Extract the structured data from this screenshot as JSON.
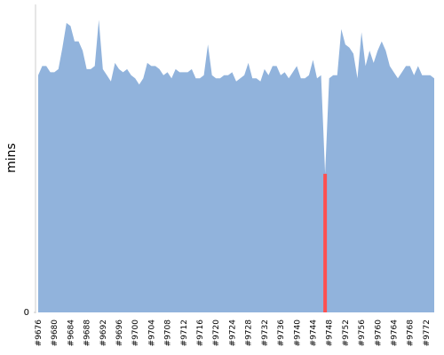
{
  "chart_data": {
    "type": "area",
    "ylabel": "mins",
    "color": "#91b3dc",
    "highlight": {
      "index": 71,
      "color": "#ff5050"
    },
    "ylim": [
      0,
      100
    ],
    "yticks": [
      0
    ],
    "categories": [
      "#9676",
      null,
      null,
      null,
      "#9680",
      null,
      null,
      null,
      "#9684",
      null,
      null,
      null,
      "#9688",
      null,
      null,
      null,
      "#9692",
      null,
      null,
      null,
      "#9696",
      null,
      null,
      null,
      "#9700",
      null,
      null,
      null,
      "#9704",
      null,
      null,
      null,
      "#9708",
      null,
      null,
      null,
      "#9712",
      null,
      null,
      null,
      "#9716",
      null,
      null,
      null,
      "#9720",
      null,
      null,
      null,
      "#9724",
      null,
      null,
      null,
      "#9728",
      null,
      null,
      null,
      "#9732",
      null,
      null,
      null,
      "#9736",
      null,
      null,
      null,
      "#9740",
      null,
      null,
      null,
      "#9744",
      null,
      null,
      null,
      "#9748",
      null,
      null,
      null,
      "#9752",
      null,
      null,
      null,
      "#9756",
      null,
      null,
      null,
      "#9760",
      null,
      null,
      null,
      "#9764",
      null,
      null,
      null,
      "#9768",
      null,
      null,
      null,
      "#9772",
      null,
      null
    ],
    "values": [
      77,
      80,
      80,
      78,
      78,
      79,
      86,
      94,
      93,
      88,
      88,
      85,
      79,
      79,
      80,
      95,
      79,
      77,
      75,
      81,
      79,
      78,
      79,
      77,
      76,
      74,
      76,
      81,
      80,
      80,
      79,
      77,
      78,
      76,
      79,
      78,
      78,
      78,
      79,
      76,
      76,
      77,
      87,
      77,
      76,
      76,
      77,
      77,
      78,
      75,
      76,
      77,
      81,
      76,
      76,
      75,
      79,
      77,
      80,
      80,
      77,
      78,
      76,
      78,
      80,
      76,
      76,
      77,
      82,
      76,
      77,
      45,
      76,
      77,
      77,
      92,
      87,
      86,
      84,
      76,
      91,
      80,
      85,
      81,
      85,
      88,
      85,
      80,
      78,
      76,
      78,
      80,
      80,
      77,
      80,
      77,
      77,
      77,
      76
    ]
  }
}
